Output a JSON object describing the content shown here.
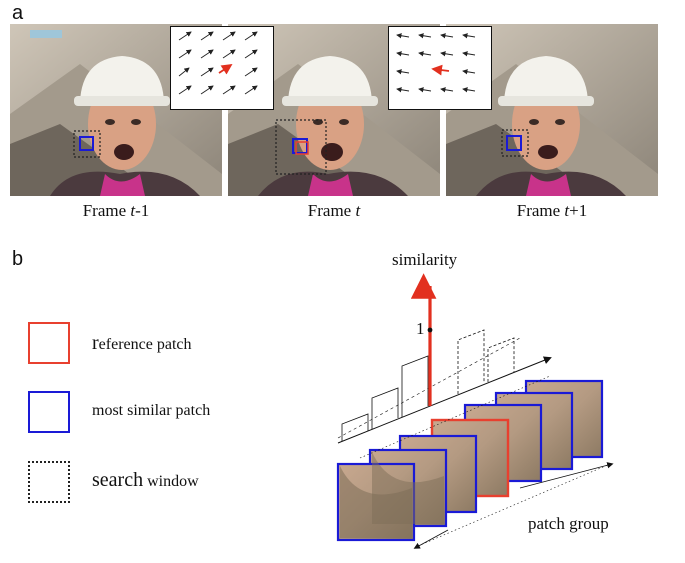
{
  "panels": {
    "a": "a",
    "b": "b"
  },
  "frames": [
    {
      "prefix": "Frame ",
      "var": "t",
      "suffix": "-1"
    },
    {
      "prefix": "Frame ",
      "var": "t",
      "suffix": ""
    },
    {
      "prefix": "Frame ",
      "var": "t",
      "suffix": "+1"
    }
  ],
  "legend": {
    "reference": {
      "first": "r",
      "rest": "eference patch"
    },
    "similar": "most similar patch",
    "search": {
      "big": "search",
      "small": " window"
    }
  },
  "diagram": {
    "axis_label": "similarity",
    "tick_one": "1",
    "group_label": "patch group"
  },
  "colors": {
    "reference": "#e8402f",
    "similar": "#1a1ad6",
    "search": "#222222",
    "arrow_red": "#e2301f"
  }
}
